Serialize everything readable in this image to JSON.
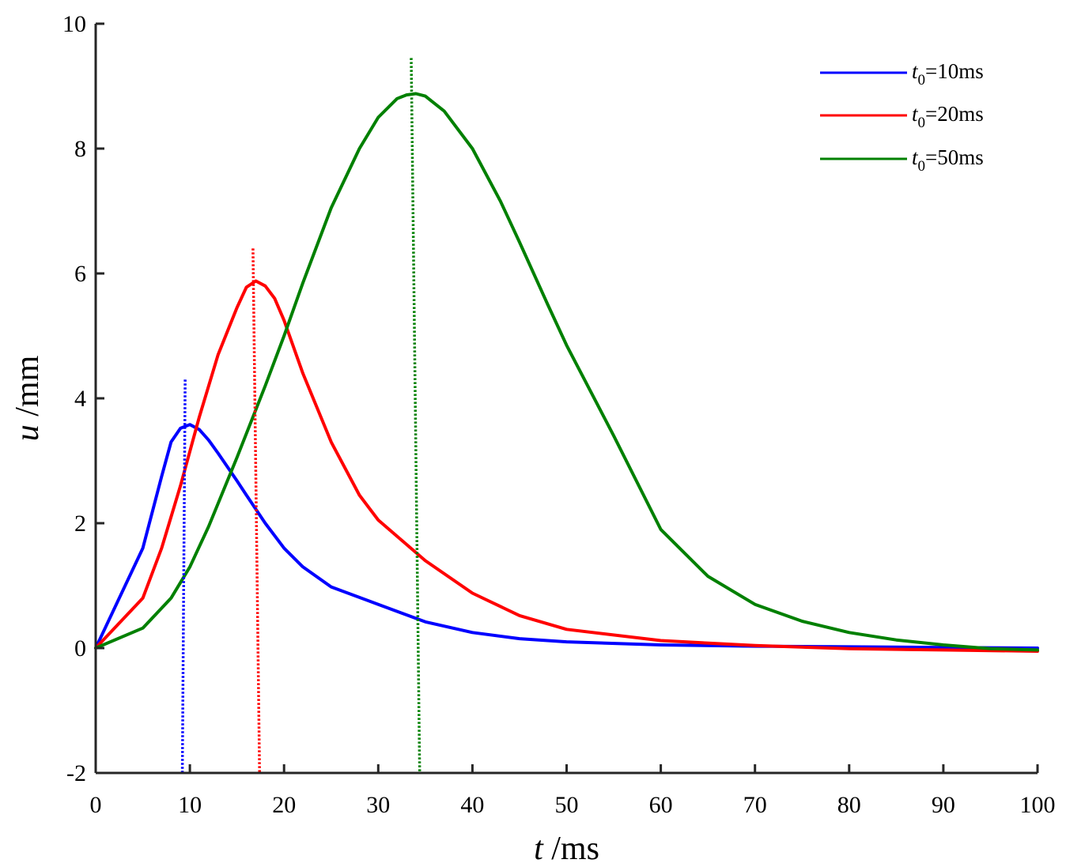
{
  "chart_data": {
    "type": "line",
    "title": "",
    "xlabel": {
      "var": "t",
      "unit": " /ms"
    },
    "ylabel": {
      "var": "u",
      "unit": " /mm"
    },
    "xlim": [
      0,
      100
    ],
    "ylim": [
      -2,
      10
    ],
    "xticks": [
      0,
      10,
      20,
      30,
      40,
      50,
      60,
      70,
      80,
      90,
      100
    ],
    "yticks": [
      -2,
      0,
      2,
      4,
      6,
      8,
      10
    ],
    "grid": false,
    "legend_position": "top-right",
    "series": [
      {
        "name": "t0=10ms",
        "legend": {
          "var": "t",
          "sub": "0",
          "rest": "=10ms"
        },
        "color": "#0000ff",
        "x": [
          0,
          5,
          7,
          8,
          9,
          10,
          11,
          12,
          13,
          14,
          15,
          16,
          18,
          20,
          22,
          25,
          30,
          35,
          40,
          45,
          50,
          60,
          70,
          80,
          90,
          100
        ],
        "y": [
          0,
          1.6,
          2.75,
          3.3,
          3.52,
          3.58,
          3.5,
          3.33,
          3.12,
          2.9,
          2.68,
          2.45,
          2.0,
          1.6,
          1.3,
          0.98,
          0.7,
          0.42,
          0.25,
          0.15,
          0.1,
          0.05,
          0.03,
          0.02,
          0.01,
          0.0
        ]
      },
      {
        "name": "t0=20ms",
        "legend": {
          "var": "t",
          "sub": "0",
          "rest": "=20ms"
        },
        "color": "#ff0000",
        "x": [
          0,
          5,
          7,
          9,
          11,
          13,
          15,
          16,
          17,
          18,
          19,
          20,
          22,
          25,
          28,
          30,
          35,
          40,
          45,
          50,
          60,
          70,
          80,
          90,
          100
        ],
        "y": [
          0,
          0.8,
          1.6,
          2.6,
          3.7,
          4.7,
          5.45,
          5.78,
          5.88,
          5.8,
          5.6,
          5.25,
          4.4,
          3.3,
          2.45,
          2.05,
          1.4,
          0.88,
          0.52,
          0.3,
          0.12,
          0.04,
          -0.01,
          -0.03,
          -0.05
        ]
      },
      {
        "name": "t0=50ms",
        "legend": {
          "var": "t",
          "sub": "0",
          "rest": "=50ms"
        },
        "color": "#008000",
        "x": [
          0,
          5,
          8,
          10,
          12,
          15,
          18,
          20,
          22,
          25,
          28,
          30,
          32,
          33,
          34,
          35,
          37,
          40,
          43,
          45,
          48,
          50,
          55,
          60,
          65,
          70,
          75,
          80,
          85,
          90,
          95,
          100
        ],
        "y": [
          0,
          0.32,
          0.8,
          1.3,
          1.95,
          3.05,
          4.2,
          5.0,
          5.85,
          7.05,
          8.0,
          8.5,
          8.8,
          8.86,
          8.88,
          8.84,
          8.6,
          8.0,
          7.15,
          6.5,
          5.5,
          4.85,
          3.4,
          1.9,
          1.15,
          0.7,
          0.43,
          0.25,
          0.13,
          0.05,
          -0.01,
          -0.03
        ]
      }
    ],
    "peak_markers": [
      {
        "series": "t0=10ms",
        "color": "#0000ff",
        "top": {
          "x": 9.5,
          "y": 4.3
        },
        "bottom": {
          "x": 9.2,
          "y": -2
        }
      },
      {
        "series": "t0=20ms",
        "color": "#ff0000",
        "top": {
          "x": 16.7,
          "y": 6.4
        },
        "bottom": {
          "x": 17.4,
          "y": -2
        }
      },
      {
        "series": "t0=50ms",
        "color": "#008000",
        "top": {
          "x": 33.5,
          "y": 9.45
        },
        "bottom": {
          "x": 34.4,
          "y": -2
        }
      }
    ]
  }
}
